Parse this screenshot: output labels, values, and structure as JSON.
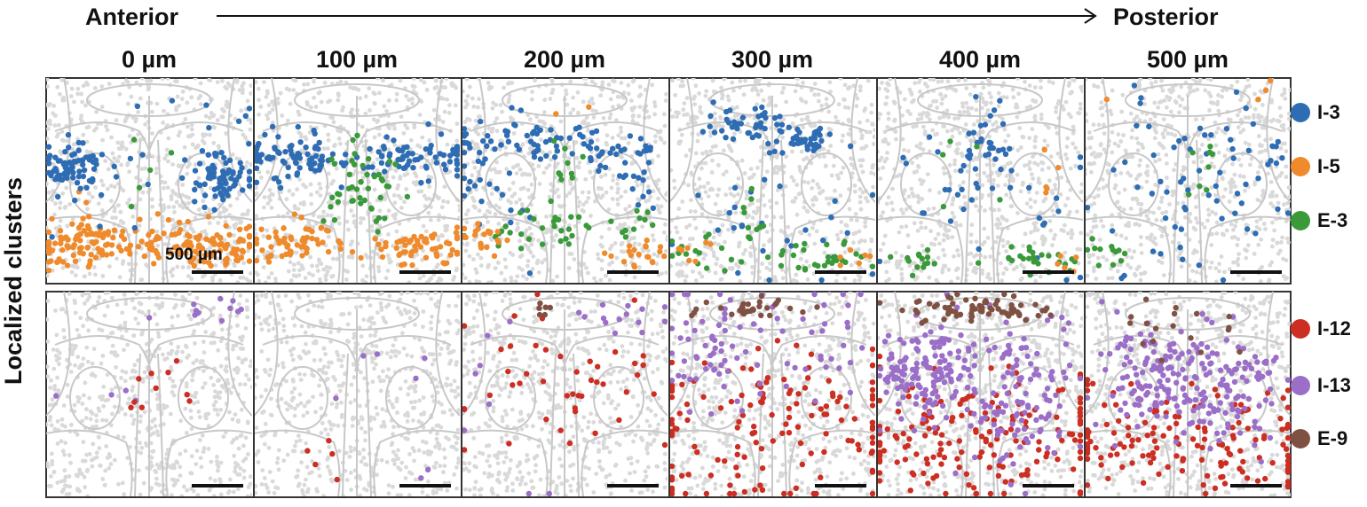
{
  "header": {
    "anterior": "Anterior",
    "posterior": "Posterior"
  },
  "columns": [
    "0 µm",
    "100 µm",
    "200 µm",
    "300 µm",
    "400 µm",
    "500 µm"
  ],
  "row_title": "Localized clusters",
  "scale_bar_label": "500 µm",
  "colors": {
    "background_cells": "#d9d9d9",
    "outline": "#c8c8c8",
    "I-3": "#2e6db4",
    "I-5": "#ef8b2c",
    "E-3": "#3a9a3a",
    "I-12": "#cc2e22",
    "I-13": "#9b6ec8",
    "E-9": "#7f5142"
  },
  "legends": {
    "top": [
      {
        "label": "I-3",
        "color": "#2e6db4"
      },
      {
        "label": "I-5",
        "color": "#ef8b2c"
      },
      {
        "label": "E-3",
        "color": "#3a9a3a"
      }
    ],
    "bottom": [
      {
        "label": "I-12",
        "color": "#cc2e22"
      },
      {
        "label": "I-13",
        "color": "#9b6ec8"
      },
      {
        "label": "E-9",
        "color": "#7f5142"
      }
    ]
  }
}
